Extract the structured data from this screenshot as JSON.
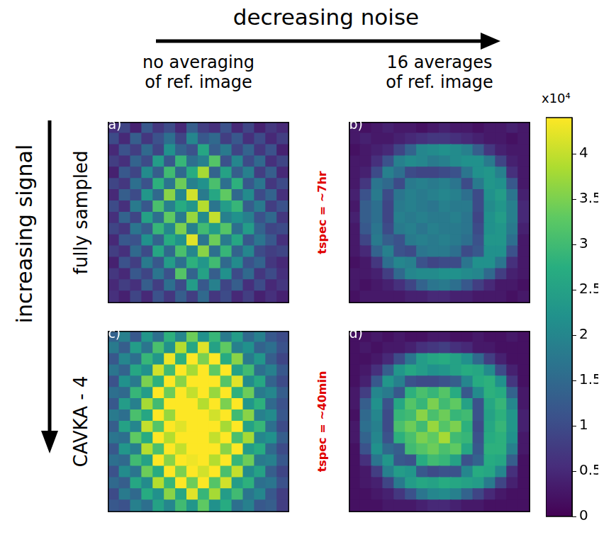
{
  "x_label": "decreasing noise",
  "y_label": "increasing signal",
  "column_titles": [
    [
      "no averaging",
      "of ref. image"
    ],
    [
      "16 averages",
      "of ref. image"
    ]
  ],
  "row_titles": [
    "fully sampled",
    "CAVKA - 4"
  ],
  "colorbar": {
    "label": "x10⁴",
    "range": [
      0,
      4.4
    ],
    "ticks": [
      0,
      0.5,
      1,
      1.5,
      2,
      2.5,
      3,
      3.5,
      4
    ]
  },
  "chart_data": [
    {
      "type": "heatmap",
      "label": "(a)",
      "tick_labels": false,
      "cells": [
        [
          0.6,
          0.9,
          0.4,
          1.2,
          0.7,
          1.0,
          0.5,
          1.3,
          0.8,
          0.6,
          1.1,
          0.5,
          0.9,
          0.4,
          0.7,
          0.5
        ],
        [
          1.0,
          0.5,
          1.3,
          0.7,
          1.1,
          1.6,
          0.9,
          2.0,
          1.2,
          1.5,
          0.8,
          1.2,
          0.6,
          1.0,
          0.5,
          0.8
        ],
        [
          0.5,
          1.1,
          0.8,
          1.5,
          0.9,
          2.2,
          1.4,
          1.1,
          2.6,
          1.3,
          1.8,
          0.9,
          1.4,
          0.7,
          1.1,
          0.4
        ],
        [
          0.8,
          0.6,
          1.4,
          1.0,
          2.4,
          1.2,
          2.9,
          1.6,
          1.9,
          3.2,
          1.1,
          2.0,
          1.0,
          1.5,
          0.6,
          0.9
        ],
        [
          0.4,
          1.2,
          0.9,
          2.1,
          1.3,
          3.0,
          1.5,
          2.7,
          3.8,
          1.4,
          2.5,
          1.3,
          1.9,
          0.8,
          1.3,
          0.5
        ],
        [
          0.9,
          0.7,
          1.6,
          1.1,
          2.8,
          1.7,
          3.4,
          1.9,
          2.2,
          3.1,
          1.6,
          2.8,
          1.2,
          1.7,
          0.7,
          1.0
        ],
        [
          0.5,
          1.3,
          1.0,
          2.3,
          1.5,
          3.6,
          2.0,
          4.1,
          1.8,
          2.6,
          3.3,
          1.5,
          2.1,
          1.0,
          1.4,
          0.6
        ],
        [
          1.0,
          0.6,
          1.8,
          1.2,
          3.1,
          1.9,
          2.7,
          2.3,
          3.9,
          1.7,
          2.4,
          2.9,
          1.3,
          1.8,
          0.8,
          1.1
        ],
        [
          0.6,
          1.4,
          0.9,
          2.5,
          1.6,
          3.3,
          1.8,
          3.7,
          2.1,
          4.0,
          1.9,
          2.2,
          1.9,
          1.1,
          1.5,
          0.7
        ],
        [
          0.9,
          0.7,
          1.7,
          1.3,
          2.9,
          2.0,
          3.5,
          1.9,
          3.0,
          2.4,
          3.2,
          1.6,
          2.4,
          1.4,
          0.9,
          1.0
        ],
        [
          0.5,
          1.2,
          1.1,
          2.2,
          1.4,
          2.7,
          2.2,
          4.2,
          1.7,
          3.4,
          1.8,
          2.6,
          1.2,
          1.7,
          1.2,
          0.6
        ],
        [
          0.8,
          0.6,
          1.5,
          1.0,
          2.6,
          1.5,
          3.1,
          2.0,
          3.6,
          1.6,
          2.9,
          1.4,
          2.0,
          1.0,
          0.8,
          0.9
        ],
        [
          0.4,
          1.1,
          0.8,
          1.8,
          1.2,
          2.4,
          1.6,
          2.8,
          2.3,
          3.0,
          1.5,
          2.1,
          1.1,
          1.4,
          0.7,
          0.5
        ],
        [
          0.7,
          0.5,
          1.2,
          0.9,
          1.7,
          1.1,
          3.2,
          1.4,
          2.5,
          1.3,
          2.2,
          1.0,
          1.5,
          0.7,
          1.0,
          0.6
        ],
        [
          0.5,
          0.8,
          0.6,
          1.3,
          0.8,
          1.6,
          1.0,
          2.4,
          1.2,
          1.9,
          0.9,
          1.3,
          0.6,
          1.0,
          0.5,
          0.7
        ],
        [
          0.6,
          0.4,
          0.9,
          0.5,
          1.1,
          0.7,
          1.3,
          0.8,
          1.5,
          0.7,
          1.0,
          0.5,
          0.8,
          0.4,
          0.6,
          0.4
        ]
      ]
    },
    {
      "type": "heatmap",
      "label": "(b)",
      "annotation": "tspec = ~7hr",
      "tick_labels": false,
      "cells": [
        [
          0.3,
          0.2,
          0.3,
          0.4,
          0.3,
          0.3,
          0.2,
          0.3,
          0.4,
          0.3,
          0.3,
          0.2,
          0.3,
          0.3,
          0.4,
          0.3
        ],
        [
          0.3,
          0.4,
          0.3,
          0.3,
          0.4,
          0.5,
          0.6,
          0.7,
          0.7,
          0.6,
          0.5,
          0.4,
          0.3,
          0.3,
          0.2,
          0.3
        ],
        [
          0.2,
          0.3,
          0.4,
          0.5,
          0.9,
          1.4,
          2.0,
          2.1,
          2.2,
          2.1,
          1.9,
          1.3,
          0.7,
          0.4,
          0.3,
          0.3
        ],
        [
          0.3,
          0.3,
          0.6,
          1.1,
          1.9,
          2.1,
          2.0,
          1.8,
          1.9,
          2.1,
          2.2,
          2.2,
          1.8,
          0.9,
          0.4,
          0.3
        ],
        [
          0.3,
          0.4,
          1.0,
          1.9,
          1.6,
          1.0,
          0.9,
          0.9,
          1.0,
          1.1,
          1.7,
          2.2,
          2.3,
          1.9,
          0.6,
          0.3
        ],
        [
          0.3,
          0.7,
          1.7,
          1.5,
          1.0,
          1.8,
          1.9,
          1.8,
          1.9,
          1.7,
          1.0,
          1.8,
          2.3,
          2.2,
          1.2,
          0.3
        ],
        [
          0.4,
          1.1,
          1.8,
          1.0,
          1.7,
          1.9,
          1.8,
          1.9,
          2.0,
          1.9,
          1.6,
          1.0,
          2.2,
          2.4,
          1.7,
          0.4
        ],
        [
          0.3,
          1.3,
          1.6,
          0.9,
          1.8,
          1.9,
          1.8,
          1.7,
          1.9,
          1.8,
          1.8,
          1.0,
          2.1,
          2.3,
          1.9,
          0.5
        ],
        [
          0.4,
          1.3,
          1.6,
          0.9,
          1.9,
          1.8,
          1.9,
          1.8,
          1.8,
          1.9,
          1.7,
          0.9,
          2.2,
          2.4,
          1.9,
          0.5
        ],
        [
          0.3,
          1.2,
          1.7,
          1.0,
          1.8,
          1.9,
          1.7,
          1.9,
          1.8,
          1.8,
          1.7,
          1.0,
          2.2,
          2.3,
          1.8,
          0.4
        ],
        [
          0.3,
          0.9,
          1.8,
          1.3,
          1.1,
          1.8,
          1.9,
          1.8,
          1.9,
          1.8,
          1.6,
          1.1,
          2.3,
          2.3,
          1.6,
          0.3
        ],
        [
          0.3,
          0.5,
          1.4,
          1.9,
          1.1,
          1.0,
          1.7,
          1.8,
          1.8,
          1.6,
          1.0,
          1.2,
          2.2,
          2.2,
          1.1,
          0.3
        ],
        [
          0.2,
          0.3,
          0.7,
          1.6,
          2.0,
          1.9,
          1.1,
          0.9,
          1.0,
          1.0,
          1.7,
          2.2,
          2.2,
          1.7,
          0.6,
          0.3
        ],
        [
          0.3,
          0.3,
          0.4,
          0.8,
          1.5,
          2.0,
          2.1,
          2.1,
          2.2,
          2.2,
          2.1,
          2.0,
          1.5,
          0.8,
          0.4,
          0.3
        ],
        [
          0.3,
          0.2,
          0.3,
          0.4,
          0.6,
          0.9,
          1.4,
          1.7,
          1.8,
          1.6,
          1.2,
          0.8,
          0.5,
          0.3,
          0.3,
          0.2
        ],
        [
          0.2,
          0.3,
          0.3,
          0.3,
          0.3,
          0.4,
          0.4,
          0.5,
          0.5,
          0.4,
          0.4,
          0.3,
          0.3,
          0.3,
          0.2,
          0.3
        ]
      ]
    },
    {
      "type": "heatmap",
      "label": "(c)",
      "tick_labels": false,
      "cells": [
        [
          1.4,
          1.9,
          1.2,
          2.3,
          1.6,
          2.8,
          2.0,
          3.4,
          2.2,
          2.9,
          1.8,
          2.4,
          1.5,
          1.9,
          1.2,
          1.0
        ],
        [
          1.8,
          1.3,
          2.4,
          1.7,
          3.1,
          2.2,
          3.9,
          2.6,
          4.2,
          2.5,
          3.3,
          1.9,
          2.2,
          1.4,
          1.6,
          1.1
        ],
        [
          1.2,
          2.0,
          1.6,
          2.9,
          2.3,
          4.3,
          2.8,
          4.4,
          3.5,
          4.4,
          2.7,
          3.6,
          1.8,
          2.3,
          1.3,
          0.9
        ],
        [
          1.7,
          1.4,
          2.6,
          2.2,
          4.1,
          3.0,
          4.4,
          3.8,
          4.4,
          3.3,
          4.4,
          2.5,
          3.0,
          1.6,
          1.9,
          1.2
        ],
        [
          1.1,
          2.2,
          1.8,
          3.5,
          2.8,
          4.4,
          3.6,
          4.4,
          4.4,
          4.4,
          3.2,
          4.2,
          2.1,
          2.6,
          1.4,
          1.0
        ],
        [
          1.6,
          1.5,
          2.9,
          2.4,
          4.4,
          3.4,
          4.4,
          4.0,
          4.4,
          3.7,
          4.4,
          2.8,
          3.4,
          1.8,
          2.0,
          1.3
        ],
        [
          1.2,
          2.4,
          1.9,
          3.8,
          3.0,
          4.4,
          4.4,
          4.4,
          3.9,
          4.4,
          3.5,
          4.4,
          2.3,
          2.8,
          1.5,
          1.1
        ],
        [
          1.8,
          1.6,
          3.1,
          2.6,
          4.4,
          3.7,
          4.4,
          4.4,
          4.4,
          4.1,
          4.4,
          3.0,
          3.6,
          1.9,
          2.1,
          1.2
        ],
        [
          1.3,
          2.5,
          2.0,
          4.0,
          3.2,
          4.4,
          4.2,
          4.4,
          4.4,
          4.4,
          3.8,
          4.4,
          2.5,
          2.9,
          1.6,
          1.0
        ],
        [
          1.7,
          1.6,
          3.3,
          2.7,
          4.4,
          3.9,
          4.4,
          4.4,
          4.4,
          4.0,
          4.4,
          3.1,
          3.8,
          2.0,
          2.2,
          1.3
        ],
        [
          1.2,
          2.3,
          1.9,
          3.9,
          3.1,
          4.4,
          4.0,
          4.4,
          4.4,
          4.4,
          3.6,
          4.4,
          2.4,
          2.7,
          1.5,
          1.0
        ],
        [
          1.6,
          1.5,
          3.0,
          2.5,
          4.4,
          3.6,
          4.4,
          4.3,
          4.4,
          3.9,
          4.4,
          2.9,
          3.4,
          1.8,
          1.9,
          1.2
        ],
        [
          1.1,
          2.1,
          1.7,
          3.4,
          2.7,
          4.4,
          3.5,
          4.4,
          4.1,
          4.4,
          3.1,
          4.0,
          2.1,
          2.5,
          1.3,
          0.9
        ],
        [
          1.5,
          1.3,
          2.6,
          2.1,
          3.9,
          2.9,
          4.4,
          3.4,
          4.4,
          3.2,
          4.1,
          2.4,
          2.8,
          1.6,
          1.7,
          1.1
        ],
        [
          1.0,
          1.8,
          1.5,
          2.7,
          2.2,
          3.6,
          2.6,
          4.2,
          2.9,
          3.8,
          2.4,
          3.0,
          1.7,
          2.0,
          1.2,
          0.8
        ],
        [
          1.2,
          1.1,
          1.9,
          1.6,
          2.5,
          2.0,
          3.0,
          2.3,
          3.3,
          2.2,
          2.7,
          1.6,
          1.9,
          1.2,
          1.3,
          0.8
        ]
      ]
    },
    {
      "type": "heatmap",
      "label": "(d)",
      "annotation": "tspec = ~40min",
      "tick_labels": false,
      "cells": [
        [
          0.2,
          0.2,
          0.3,
          0.2,
          0.3,
          0.2,
          0.2,
          0.3,
          0.3,
          0.2,
          0.2,
          0.3,
          0.2,
          0.2,
          0.3,
          0.2
        ],
        [
          0.2,
          0.3,
          0.2,
          0.3,
          0.3,
          0.4,
          0.6,
          0.7,
          0.8,
          0.6,
          0.5,
          0.3,
          0.3,
          0.2,
          0.2,
          0.2
        ],
        [
          0.2,
          0.2,
          0.3,
          0.5,
          1.0,
          1.7,
          2.4,
          2.6,
          2.7,
          2.5,
          2.2,
          1.5,
          0.8,
          0.4,
          0.2,
          0.2
        ],
        [
          0.2,
          0.3,
          0.6,
          1.3,
          2.3,
          2.6,
          2.4,
          2.2,
          2.3,
          2.5,
          2.7,
          2.6,
          2.1,
          1.0,
          0.4,
          0.2
        ],
        [
          0.2,
          0.4,
          1.2,
          2.3,
          1.9,
          1.1,
          1.0,
          1.0,
          1.1,
          1.3,
          2.0,
          2.7,
          2.8,
          2.2,
          0.7,
          0.2
        ],
        [
          0.3,
          0.8,
          2.0,
          1.8,
          1.2,
          2.8,
          3.1,
          2.9,
          3.2,
          2.7,
          1.2,
          2.1,
          2.8,
          2.7,
          1.4,
          0.3
        ],
        [
          0.3,
          1.3,
          2.2,
          1.1,
          2.6,
          3.2,
          2.9,
          3.5,
          3.0,
          3.3,
          2.5,
          1.1,
          2.6,
          2.9,
          2.0,
          0.3
        ],
        [
          0.2,
          1.5,
          2.0,
          1.0,
          2.9,
          3.0,
          3.6,
          3.1,
          3.4,
          2.9,
          3.0,
          1.1,
          2.5,
          2.8,
          2.3,
          0.4
        ],
        [
          0.3,
          1.6,
          1.9,
          1.0,
          3.1,
          3.4,
          3.0,
          3.7,
          3.2,
          3.5,
          2.8,
          1.0,
          2.6,
          2.9,
          2.3,
          0.4
        ],
        [
          0.3,
          1.4,
          2.0,
          1.1,
          2.8,
          3.1,
          3.5,
          3.3,
          3.8,
          3.0,
          2.9,
          1.1,
          2.7,
          2.8,
          2.2,
          0.3
        ],
        [
          0.2,
          1.1,
          2.2,
          1.5,
          1.3,
          3.0,
          3.2,
          3.4,
          3.1,
          3.3,
          2.6,
          1.2,
          2.8,
          2.8,
          1.9,
          0.3
        ],
        [
          0.2,
          0.6,
          1.7,
          2.3,
          1.2,
          1.1,
          2.7,
          3.0,
          2.9,
          2.5,
          1.1,
          1.4,
          2.7,
          2.6,
          1.3,
          0.2
        ],
        [
          0.2,
          0.3,
          0.8,
          1.9,
          2.4,
          2.3,
          1.2,
          1.0,
          1.1,
          1.1,
          2.0,
          2.7,
          2.6,
          2.0,
          0.6,
          0.2
        ],
        [
          0.2,
          0.3,
          0.4,
          0.9,
          1.8,
          2.4,
          2.6,
          2.5,
          2.7,
          2.6,
          2.5,
          2.4,
          1.8,
          0.9,
          0.4,
          0.2
        ],
        [
          0.2,
          0.2,
          0.3,
          0.4,
          0.7,
          1.1,
          1.7,
          2.0,
          2.1,
          1.9,
          1.4,
          0.9,
          0.5,
          0.3,
          0.2,
          0.2
        ],
        [
          0.2,
          0.2,
          0.2,
          0.3,
          0.3,
          0.3,
          0.4,
          0.5,
          0.5,
          0.4,
          0.3,
          0.3,
          0.2,
          0.2,
          0.2,
          0.2
        ]
      ]
    }
  ]
}
